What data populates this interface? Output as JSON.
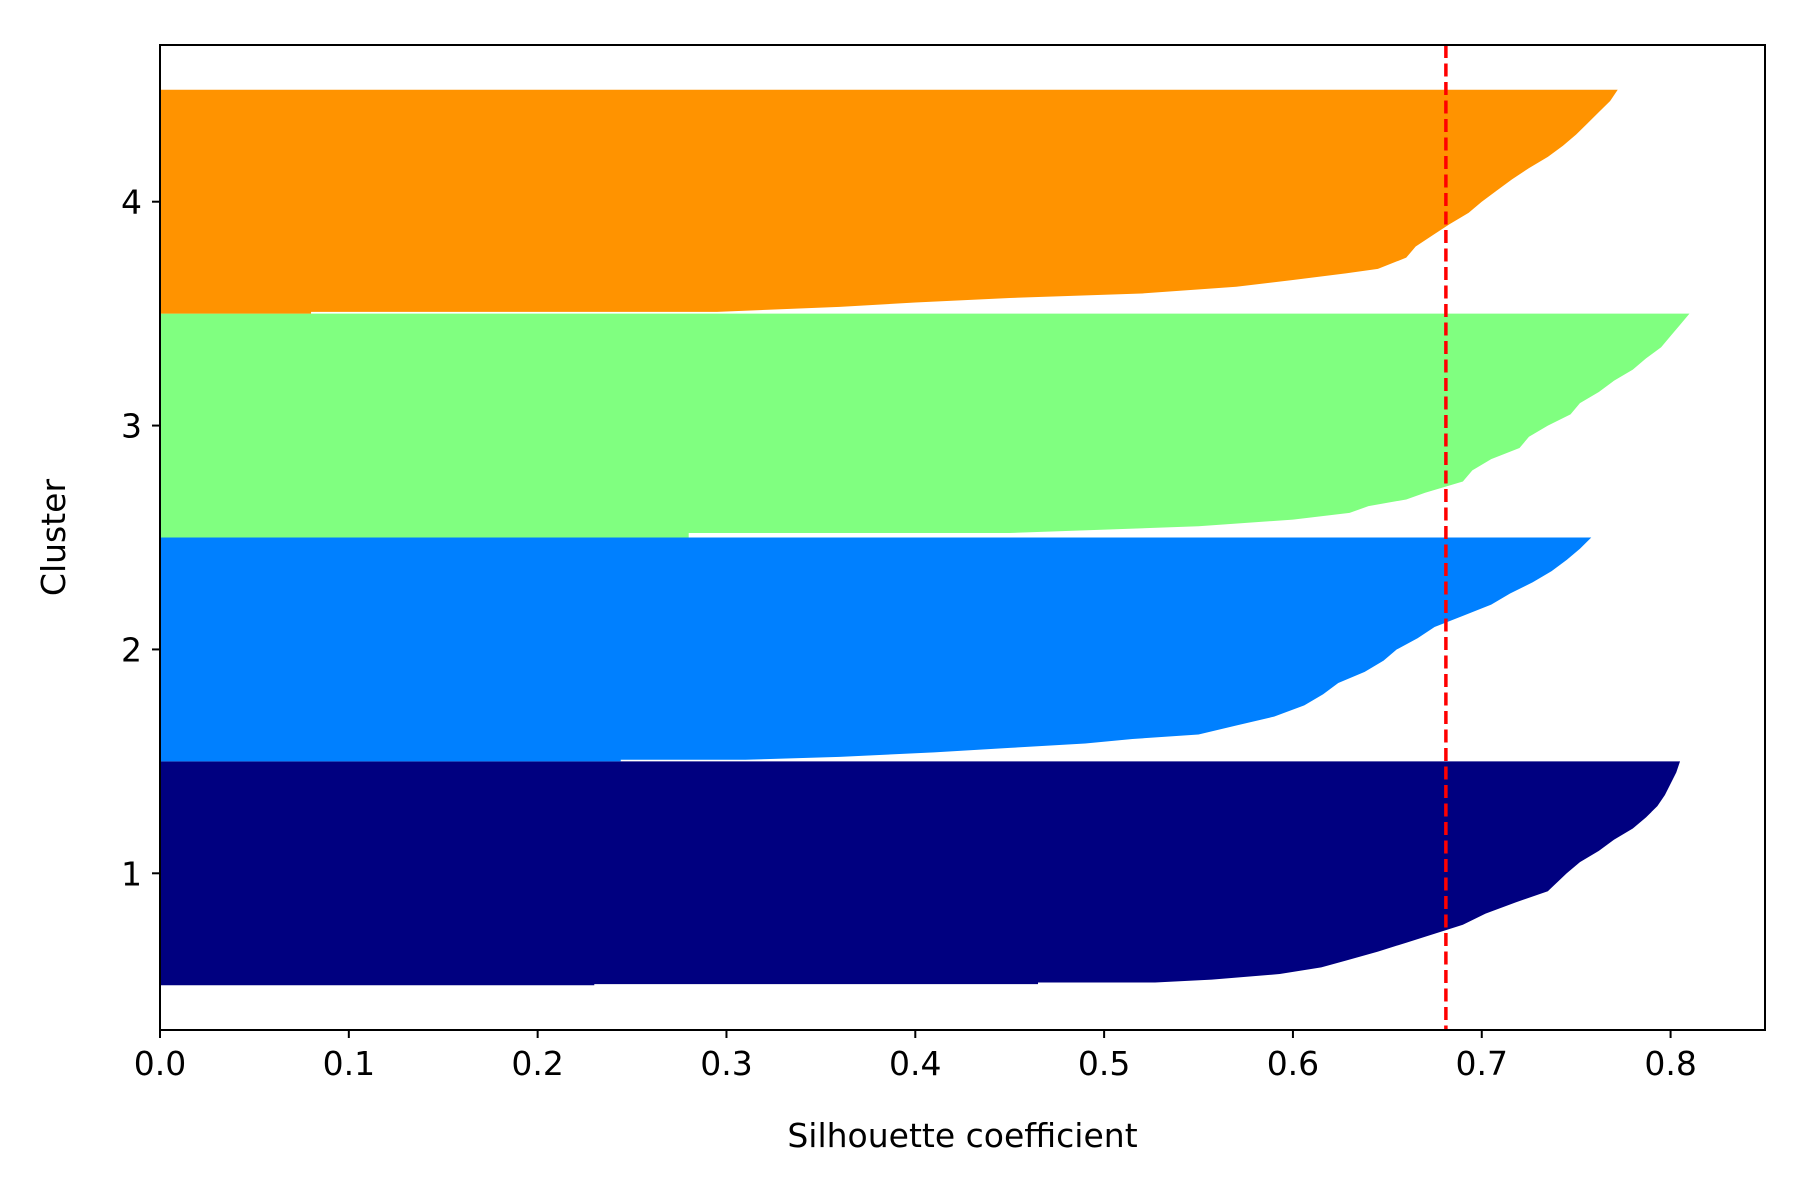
{
  "chart_data": {
    "type": "bar",
    "orientation": "horizontal",
    "title": "",
    "xlabel": "Silhouette coefficient",
    "ylabel": "Cluster",
    "xlim": [
      0.0,
      0.85
    ],
    "ylim": [
      0.3,
      4.7
    ],
    "grid": false,
    "x_ticks": [
      "0.0",
      "0.1",
      "0.2",
      "0.3",
      "0.4",
      "0.5",
      "0.6",
      "0.7",
      "0.8"
    ],
    "y_ticks": [
      "1",
      "2",
      "3",
      "4"
    ],
    "mean_line": {
      "x": 0.681,
      "color": "#ff0000",
      "style": "dashed"
    },
    "clusters": [
      {
        "label": "1",
        "color": "#000080",
        "profile": [
          [
            0,
            0.23
          ],
          [
            0.005,
            0.23
          ],
          [
            0.005,
            0.465
          ],
          [
            0.012,
            0.465
          ],
          [
            0.012,
            0.527
          ],
          [
            0.025,
            0.557
          ],
          [
            0.05,
            0.593
          ],
          [
            0.08,
            0.615
          ],
          [
            0.11,
            0.628
          ],
          [
            0.15,
            0.645
          ],
          [
            0.19,
            0.66
          ],
          [
            0.23,
            0.675
          ],
          [
            0.27,
            0.69
          ],
          [
            0.32,
            0.702
          ],
          [
            0.37,
            0.718
          ],
          [
            0.42,
            0.735
          ],
          [
            0.46,
            0.74
          ],
          [
            0.5,
            0.745
          ],
          [
            0.55,
            0.752
          ],
          [
            0.6,
            0.762
          ],
          [
            0.65,
            0.77
          ],
          [
            0.7,
            0.78
          ],
          [
            0.75,
            0.787
          ],
          [
            0.8,
            0.793
          ],
          [
            0.85,
            0.797
          ],
          [
            0.9,
            0.8
          ],
          [
            0.95,
            0.803
          ],
          [
            1,
            0.805
          ]
        ]
      },
      {
        "label": "2",
        "color": "#0080ff",
        "profile": [
          [
            0,
            0.244
          ],
          [
            0.007,
            0.244
          ],
          [
            0.007,
            0.31
          ],
          [
            0.02,
            0.36
          ],
          [
            0.04,
            0.41
          ],
          [
            0.06,
            0.45
          ],
          [
            0.08,
            0.49
          ],
          [
            0.1,
            0.515
          ],
          [
            0.12,
            0.55
          ],
          [
            0.16,
            0.57
          ],
          [
            0.2,
            0.59
          ],
          [
            0.25,
            0.606
          ],
          [
            0.3,
            0.616
          ],
          [
            0.35,
            0.624
          ],
          [
            0.4,
            0.638
          ],
          [
            0.45,
            0.648
          ],
          [
            0.5,
            0.655
          ],
          [
            0.55,
            0.666
          ],
          [
            0.6,
            0.675
          ],
          [
            0.65,
            0.69
          ],
          [
            0.7,
            0.705
          ],
          [
            0.75,
            0.715
          ],
          [
            0.8,
            0.727
          ],
          [
            0.85,
            0.737
          ],
          [
            0.9,
            0.745
          ],
          [
            0.95,
            0.752
          ],
          [
            1,
            0.758
          ]
        ]
      },
      {
        "label": "3",
        "color": "#80ff80",
        "profile": [
          [
            0,
            0.28
          ],
          [
            0.02,
            0.28
          ],
          [
            0.02,
            0.45
          ],
          [
            0.05,
            0.55
          ],
          [
            0.08,
            0.6
          ],
          [
            0.11,
            0.63
          ],
          [
            0.14,
            0.64
          ],
          [
            0.17,
            0.66
          ],
          [
            0.2,
            0.67
          ],
          [
            0.25,
            0.69
          ],
          [
            0.3,
            0.695
          ],
          [
            0.35,
            0.705
          ],
          [
            0.4,
            0.72
          ],
          [
            0.45,
            0.725
          ],
          [
            0.5,
            0.735
          ],
          [
            0.55,
            0.747
          ],
          [
            0.6,
            0.752
          ],
          [
            0.65,
            0.762
          ],
          [
            0.7,
            0.77
          ],
          [
            0.75,
            0.78
          ],
          [
            0.8,
            0.787
          ],
          [
            0.85,
            0.795
          ],
          [
            0.9,
            0.8
          ],
          [
            0.95,
            0.805
          ],
          [
            1,
            0.81
          ]
        ]
      },
      {
        "label": "4",
        "color": "#ff9300",
        "profile": [
          [
            0,
            0.08
          ],
          [
            0.008,
            0.08
          ],
          [
            0.008,
            0.295
          ],
          [
            0.03,
            0.36
          ],
          [
            0.05,
            0.4
          ],
          [
            0.07,
            0.45
          ],
          [
            0.09,
            0.52
          ],
          [
            0.12,
            0.57
          ],
          [
            0.15,
            0.6
          ],
          [
            0.18,
            0.628
          ],
          [
            0.2,
            0.645
          ],
          [
            0.25,
            0.66
          ],
          [
            0.3,
            0.665
          ],
          [
            0.35,
            0.674
          ],
          [
            0.4,
            0.683
          ],
          [
            0.45,
            0.693
          ],
          [
            0.5,
            0.7
          ],
          [
            0.55,
            0.708
          ],
          [
            0.6,
            0.716
          ],
          [
            0.65,
            0.725
          ],
          [
            0.7,
            0.735
          ],
          [
            0.75,
            0.743
          ],
          [
            0.8,
            0.75
          ],
          [
            0.85,
            0.756
          ],
          [
            0.9,
            0.762
          ],
          [
            0.95,
            0.768
          ],
          [
            1,
            0.772
          ]
        ]
      }
    ]
  }
}
